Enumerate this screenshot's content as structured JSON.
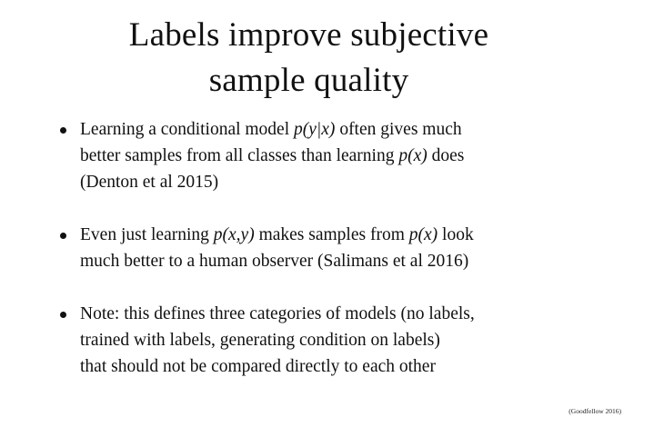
{
  "title": {
    "line1": "Labels improve subjective",
    "line2": "sample quality"
  },
  "bullets": [
    {
      "lines": [
        [
          "Learning a conditional model ",
          {
            "math": "p(y|x)"
          },
          " often gives much"
        ],
        [
          "better samples from all classes than learning ",
          {
            "math": "p(x)"
          },
          " does"
        ],
        [
          "(Denton et al 2015)"
        ]
      ]
    },
    {
      "lines": [
        [
          "Even just learning ",
          {
            "math": "p(x,y)"
          },
          " makes samples from ",
          {
            "math": "p(x)"
          },
          " look"
        ],
        [
          "much better to a human observer (Salimans et al 2016)"
        ]
      ]
    },
    {
      "lines": [
        [
          "Note: this defines three categories of models (no labels,"
        ],
        [
          "trained with labels, generating condition on labels)"
        ],
        [
          "that should not be compared directly to each other"
        ]
      ]
    }
  ],
  "citation": "(Goodfellow 2016)"
}
